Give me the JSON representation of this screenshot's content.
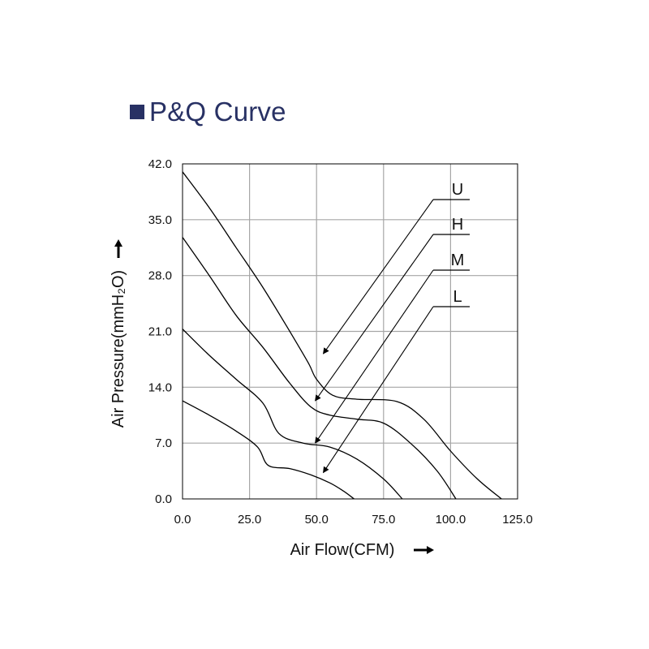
{
  "title": "P&Q Curve",
  "colors": {
    "title": "#283164",
    "grid": "#a6a6a6",
    "axes": "#000000",
    "curve": "#000000"
  },
  "icons": {
    "title_marker": "square-bullet-icon",
    "x_axis_arrow": "arrow-right-icon",
    "y_axis_arrow": "arrow-up-icon"
  },
  "chart_data": {
    "type": "line",
    "title": "P&Q Curve",
    "xlabel": "Air Flow(CFM)",
    "ylabel": "Air Pressure(mmH₂O)",
    "xlim": [
      0,
      125
    ],
    "ylim": [
      0,
      42
    ],
    "xticks": [
      "0.0",
      "25.0",
      "50.0",
      "75.0",
      "100.0",
      "125.0"
    ],
    "yticks": [
      "0.0",
      "7.0",
      "14.0",
      "21.0",
      "28.0",
      "35.0",
      "42.0"
    ],
    "grid": true,
    "series": [
      {
        "name": "U",
        "points": [
          [
            0,
            41
          ],
          [
            10,
            36.5
          ],
          [
            20,
            31.5
          ],
          [
            30,
            26.5
          ],
          [
            40,
            21
          ],
          [
            47,
            17
          ],
          [
            50,
            15
          ],
          [
            56,
            13
          ],
          [
            65,
            12.5
          ],
          [
            80,
            12.2
          ],
          [
            90,
            10
          ],
          [
            100,
            6
          ],
          [
            110,
            2.5
          ],
          [
            119,
            0
          ]
        ]
      },
      {
        "name": "H",
        "points": [
          [
            0,
            32.8
          ],
          [
            10,
            28
          ],
          [
            20,
            23
          ],
          [
            30,
            19
          ],
          [
            40,
            14.5
          ],
          [
            48,
            11.5
          ],
          [
            55,
            10.5
          ],
          [
            65,
            10
          ],
          [
            75,
            9.5
          ],
          [
            85,
            7
          ],
          [
            95,
            3.5
          ],
          [
            102,
            0
          ]
        ]
      },
      {
        "name": "M",
        "points": [
          [
            0,
            21.3
          ],
          [
            10,
            18
          ],
          [
            20,
            15
          ],
          [
            30,
            12
          ],
          [
            36,
            8.2
          ],
          [
            45,
            7
          ],
          [
            55,
            6.5
          ],
          [
            65,
            5
          ],
          [
            75,
            2.5
          ],
          [
            82,
            0
          ]
        ]
      },
      {
        "name": "L",
        "points": [
          [
            0,
            12.3
          ],
          [
            10,
            10.5
          ],
          [
            20,
            8.5
          ],
          [
            28,
            6.5
          ],
          [
            32,
            4.2
          ],
          [
            40,
            3.8
          ],
          [
            48,
            3
          ],
          [
            55,
            2
          ],
          [
            60,
            1
          ],
          [
            64,
            0
          ]
        ]
      }
    ],
    "annotations": [
      {
        "label": "U",
        "points_to": [
          52.5,
          18.2
        ]
      },
      {
        "label": "H",
        "points_to": [
          49.5,
          12.3
        ]
      },
      {
        "label": "M",
        "points_to": [
          49.5,
          7.0
        ]
      },
      {
        "label": "L",
        "points_to": [
          52.5,
          3.3
        ]
      }
    ]
  }
}
